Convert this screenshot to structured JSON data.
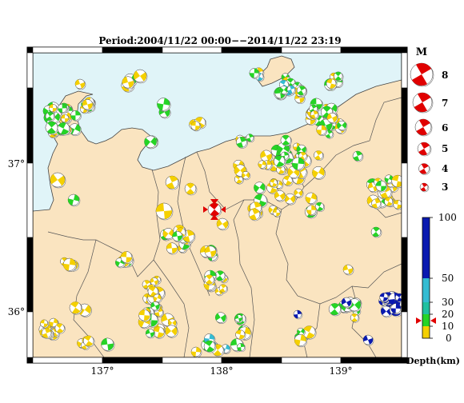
{
  "map": {
    "title": "Period:2004/11/22 00:00−−2014/11/22 23:19",
    "lat_labels": [
      "37°",
      "36°"
    ],
    "lon_labels": [
      "137°",
      "138°",
      "139°"
    ],
    "colors": {
      "sea": "#e0f4f8",
      "land": "#fae4c0",
      "frame": "#000000",
      "depth_0_10": "#f5d000",
      "depth_10_20": "#26d426",
      "depth_30_50": "#34bcd2",
      "depth_50_100": "#0a1ab0",
      "highlight": "#e00000"
    }
  },
  "magnitude_legend": {
    "heading": "M",
    "labels": [
      "8",
      "7",
      "6",
      "5",
      "4",
      "3"
    ]
  },
  "depth_legend": {
    "heading": "Depth(km)",
    "labels": [
      "100",
      "50",
      "30",
      "20",
      "10",
      "0"
    ]
  }
}
